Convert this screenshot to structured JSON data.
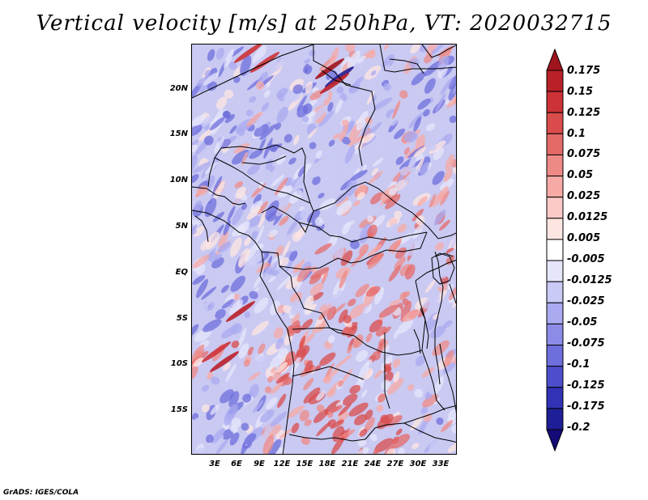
{
  "title": "Vertical velocity [m/s] at 250hPa, VT: 2020032715",
  "credit": "GrADS: IGES/COLA",
  "lat_labels": [
    "20N",
    "15N",
    "10N",
    "5N",
    "EQ",
    "5S",
    "10S",
    "15S"
  ],
  "lon_labels": [
    "3E",
    "6E",
    "9E",
    "12E",
    "15E",
    "18E",
    "21E",
    "24E",
    "27E",
    "30E",
    "33E"
  ],
  "colorbar": {
    "labels": [
      "0.175",
      "0.15",
      "0.125",
      "0.1",
      "0.075",
      "0.05",
      "0.025",
      "0.0125",
      "0.005",
      "-0.005",
      "-0.0125",
      "-0.025",
      "-0.05",
      "-0.075",
      "-0.1",
      "-0.125",
      "-0.175",
      "-0.2"
    ],
    "colors": [
      "#a0141e",
      "#b92028",
      "#cd3236",
      "#da4c4c",
      "#e46a68",
      "#ee8a86",
      "#f6aaa6",
      "#fbcac6",
      "#fde6e2",
      "#ffffff",
      "#e6e6fb",
      "#cacaf6",
      "#aaaaf0",
      "#8c8ce8",
      "#6e6edc",
      "#4e4ecc",
      "#3232b6",
      "#1e1e96",
      "#140a78"
    ]
  }
}
